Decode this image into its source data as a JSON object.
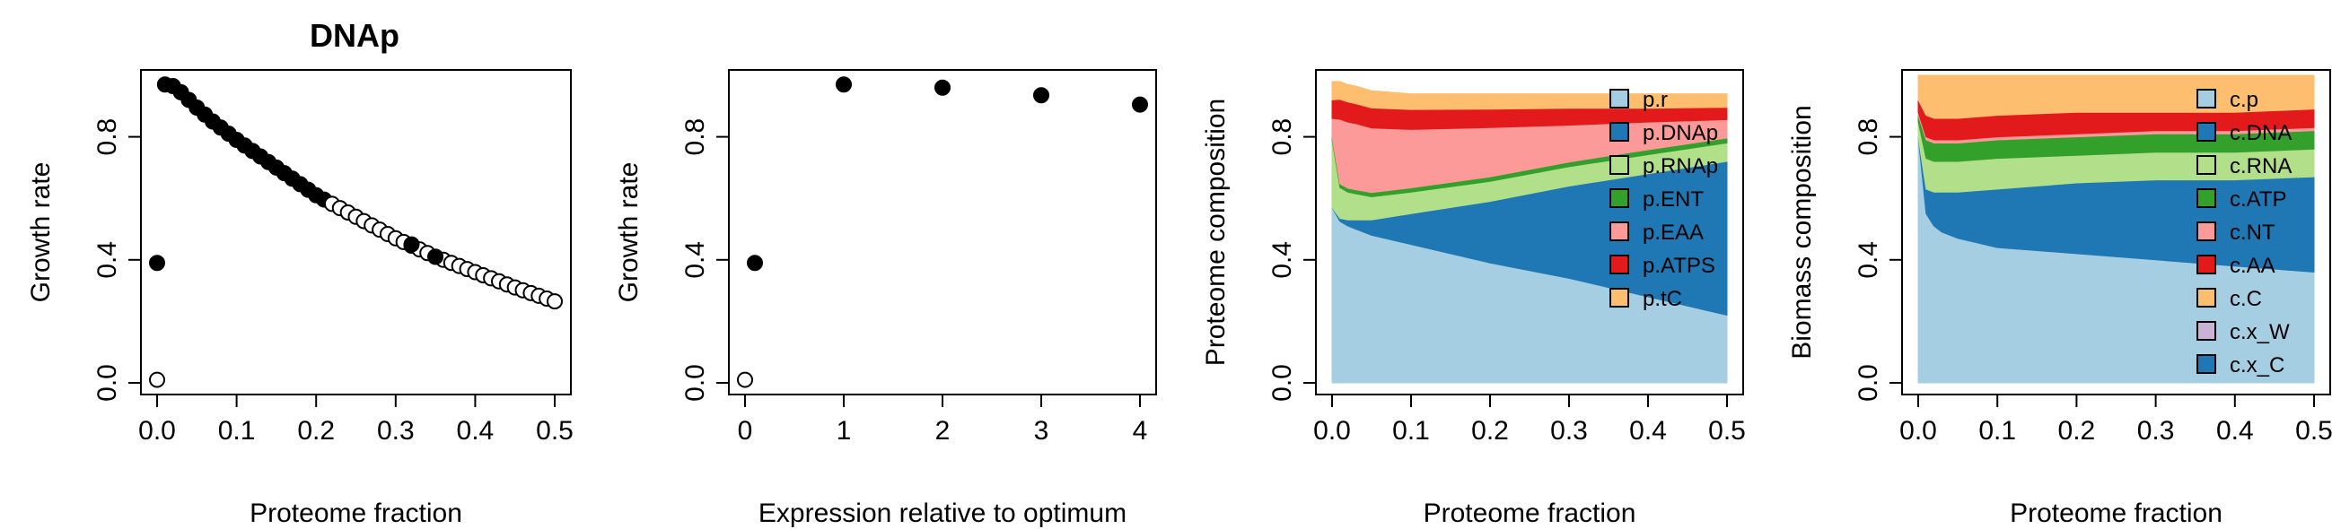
{
  "figure_title": "DNAp",
  "chart_data": [
    {
      "type": "scatter",
      "title": "DNAp",
      "xlabel": "Proteome fraction",
      "ylabel": "Growth rate",
      "xlim": [
        0,
        0.5
      ],
      "ylim": [
        0,
        1
      ],
      "xticks": [
        "0.0",
        "0.1",
        "0.2",
        "0.3",
        "0.4",
        "0.5"
      ],
      "yticks": [
        "0.0",
        "0.4",
        "0.8"
      ],
      "series": [
        {
          "fill": "open",
          "x": [
            0.0
          ],
          "y": [
            0.01
          ]
        },
        {
          "fill": "filled",
          "x": [
            0.0
          ],
          "y": [
            0.39
          ]
        },
        {
          "fill": "filled_to",
          "x_end": 0.21
        },
        {
          "fill": "open_from",
          "x_start": 0.21
        }
      ],
      "curve": {
        "x": [
          0.01,
          0.02,
          0.03,
          0.05,
          0.07,
          0.1,
          0.15,
          0.2,
          0.25,
          0.3,
          0.35,
          0.4,
          0.45,
          0.5
        ],
        "y": [
          0.97,
          0.965,
          0.945,
          0.895,
          0.85,
          0.79,
          0.7,
          0.61,
          0.54,
          0.47,
          0.41,
          0.36,
          0.31,
          0.265
        ]
      },
      "filled_extra": {
        "x": [
          0.32,
          0.35
        ],
        "y": [
          0.45,
          0.41
        ]
      }
    },
    {
      "type": "scatter",
      "xlabel": "Expression relative to optimum",
      "ylabel": "Growth rate",
      "xlim": [
        0,
        4
      ],
      "ylim": [
        0,
        1
      ],
      "xticks": [
        "0",
        "1",
        "2",
        "3",
        "4"
      ],
      "yticks": [
        "0.0",
        "0.4",
        "0.8"
      ],
      "points": [
        {
          "x": 0.0,
          "y": 0.01,
          "fill": "open"
        },
        {
          "x": 0.1,
          "y": 0.39,
          "fill": "filled"
        },
        {
          "x": 1.0,
          "y": 0.97,
          "fill": "filled"
        },
        {
          "x": 2.0,
          "y": 0.96,
          "fill": "filled"
        },
        {
          "x": 3.0,
          "y": 0.935,
          "fill": "filled"
        },
        {
          "x": 4.0,
          "y": 0.905,
          "fill": "filled"
        }
      ]
    },
    {
      "type": "area",
      "xlabel": "Proteome fraction",
      "ylabel": "Proteome composition",
      "xlim": [
        0,
        0.5
      ],
      "ylim": [
        0,
        1
      ],
      "xticks": [
        "0.0",
        "0.1",
        "0.2",
        "0.3",
        "0.4",
        "0.5"
      ],
      "yticks": [
        "0.0",
        "0.4",
        "0.8"
      ],
      "x": [
        0,
        0.01,
        0.02,
        0.03,
        0.05,
        0.1,
        0.2,
        0.3,
        0.4,
        0.5
      ],
      "series": [
        {
          "name": "p.r",
          "color": "#a6cee3",
          "values": [
            0.57,
            0.525,
            0.51,
            0.5,
            0.48,
            0.45,
            0.39,
            0.34,
            0.28,
            0.22
          ]
        },
        {
          "name": "p.DNAp",
          "color": "#1f78b4",
          "values": [
            0.0,
            0.01,
            0.02,
            0.03,
            0.05,
            0.1,
            0.2,
            0.3,
            0.4,
            0.5
          ]
        },
        {
          "name": "p.RNAp",
          "color": "#b2df8a",
          "values": [
            0.22,
            0.1,
            0.09,
            0.085,
            0.075,
            0.07,
            0.065,
            0.063,
            0.062,
            0.06
          ]
        },
        {
          "name": "p.ENT",
          "color": "#33a02c",
          "values": [
            0.01,
            0.012,
            0.013,
            0.013,
            0.014,
            0.014,
            0.015,
            0.015,
            0.016,
            0.016
          ]
        },
        {
          "name": "p.EAA",
          "color": "#fb9a99",
          "values": [
            0.06,
            0.21,
            0.215,
            0.215,
            0.21,
            0.19,
            0.16,
            0.12,
            0.09,
            0.06
          ]
        },
        {
          "name": "p.ATPS",
          "color": "#e31a1c",
          "values": [
            0.06,
            0.065,
            0.065,
            0.065,
            0.065,
            0.065,
            0.06,
            0.055,
            0.045,
            0.04
          ]
        },
        {
          "name": "p.tC",
          "color": "#fdbf6f",
          "values": [
            0.06,
            0.058,
            0.057,
            0.057,
            0.056,
            0.051,
            0.05,
            0.047,
            0.047,
            0.044
          ]
        }
      ]
    },
    {
      "type": "area",
      "xlabel": "Proteome fraction",
      "ylabel": "Biomass composition",
      "xlim": [
        0,
        0.5
      ],
      "ylim": [
        0,
        1
      ],
      "xticks": [
        "0.0",
        "0.1",
        "0.2",
        "0.3",
        "0.4",
        "0.5"
      ],
      "yticks": [
        "0.0",
        "0.4",
        "0.8"
      ],
      "x": [
        0,
        0.01,
        0.02,
        0.03,
        0.05,
        0.1,
        0.2,
        0.3,
        0.4,
        0.5
      ],
      "series": [
        {
          "name": "c.p",
          "color": "#a6cee3",
          "values": [
            0.8,
            0.55,
            0.51,
            0.49,
            0.47,
            0.44,
            0.42,
            0.4,
            0.38,
            0.36
          ]
        },
        {
          "name": "c.DNA",
          "color": "#1f78b4",
          "values": [
            0.0,
            0.08,
            0.11,
            0.13,
            0.15,
            0.19,
            0.23,
            0.26,
            0.28,
            0.31
          ]
        },
        {
          "name": "c.RNA",
          "color": "#b2df8a",
          "values": [
            0.05,
            0.1,
            0.1,
            0.1,
            0.1,
            0.1,
            0.09,
            0.09,
            0.09,
            0.09
          ]
        },
        {
          "name": "c.ATP",
          "color": "#33a02c",
          "values": [
            0.02,
            0.06,
            0.06,
            0.06,
            0.06,
            0.06,
            0.06,
            0.06,
            0.06,
            0.06
          ]
        },
        {
          "name": "c.NT",
          "color": "#fb9a99",
          "values": [
            0.01,
            0.01,
            0.01,
            0.01,
            0.01,
            0.01,
            0.01,
            0.01,
            0.01,
            0.01
          ]
        },
        {
          "name": "c.AA",
          "color": "#e31a1c",
          "values": [
            0.04,
            0.07,
            0.07,
            0.07,
            0.07,
            0.07,
            0.07,
            0.06,
            0.06,
            0.06
          ]
        },
        {
          "name": "c.C",
          "color": "#fdbf6f",
          "values": [
            0.08,
            0.13,
            0.14,
            0.14,
            0.14,
            0.13,
            0.12,
            0.12,
            0.12,
            0.11
          ]
        },
        {
          "name": "c.x_W",
          "color": "#cab2d6",
          "values": [
            0,
            0,
            0,
            0,
            0,
            0,
            0,
            0,
            0,
            0
          ]
        },
        {
          "name": "c.x_C",
          "color": "#1f78b4",
          "values": [
            0,
            0,
            0,
            0,
            0,
            0,
            0,
            0,
            0,
            0
          ]
        }
      ]
    }
  ]
}
